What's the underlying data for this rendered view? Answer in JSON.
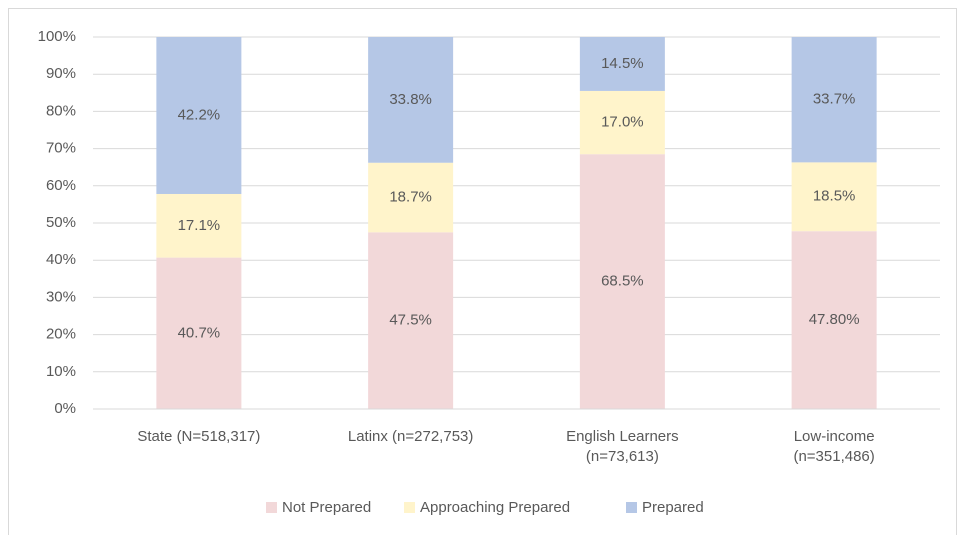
{
  "chart_data": {
    "type": "stacked-bar",
    "categories": [
      "State (N=518,317)",
      "Latinx (n=272,753)",
      "English Learners\n(n=73,613)",
      "Low-income\n(n=351,486)"
    ],
    "series": [
      {
        "name": "Not Prepared",
        "color": "#f2d8d9",
        "values": [
          40.7,
          47.5,
          68.5,
          47.8
        ],
        "value_labels": [
          "40.7%",
          "47.5%",
          "68.5%",
          "47.80%"
        ]
      },
      {
        "name": "Approaching Prepared",
        "color": "#fff4cb",
        "values": [
          17.1,
          18.7,
          17.0,
          18.5
        ],
        "value_labels": [
          "17.1%",
          "18.7%",
          "17.0%",
          "18.5%"
        ]
      },
      {
        "name": "Prepared",
        "color": "#b5c7e6",
        "values": [
          42.2,
          33.8,
          14.5,
          33.7
        ],
        "value_labels": [
          "42.2%",
          "33.8%",
          "14.5%",
          "33.7%"
        ]
      }
    ],
    "ylim": [
      0,
      100
    ],
    "yticks": [
      {
        "value": 0,
        "label": "0%"
      },
      {
        "value": 10,
        "label": "10%"
      },
      {
        "value": 20,
        "label": "20%"
      },
      {
        "value": 30,
        "label": "30%"
      },
      {
        "value": 40,
        "label": "40%"
      },
      {
        "value": 50,
        "label": "50%"
      },
      {
        "value": 60,
        "label": "60%"
      },
      {
        "value": 70,
        "label": "70%"
      },
      {
        "value": 80,
        "label": "80%"
      },
      {
        "value": 90,
        "label": "90%"
      },
      {
        "value": 100,
        "label": "100%"
      }
    ],
    "grid": true,
    "legend": "bottom"
  }
}
